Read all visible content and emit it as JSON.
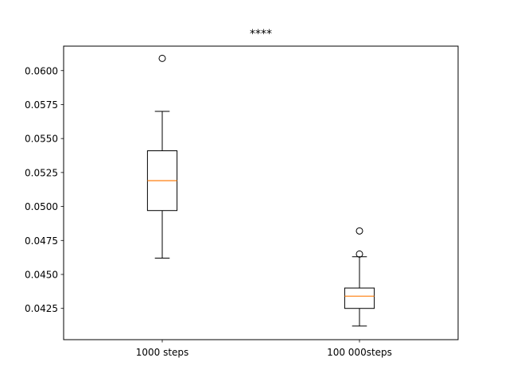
{
  "chart_data": {
    "type": "box",
    "title": "****",
    "xlabel": "",
    "ylabel": "",
    "categories": [
      "1000 steps",
      "100 000steps"
    ],
    "ylim": [
      0.0402,
      0.0618
    ],
    "yticks": [
      0.0425,
      0.045,
      0.0475,
      0.05,
      0.0525,
      0.055,
      0.0575,
      0.06
    ],
    "ytick_labels": [
      "0.0425",
      "0.0450",
      "0.0475",
      "0.0500",
      "0.0525",
      "0.0550",
      "0.0575",
      "0.0600"
    ],
    "grid": false,
    "boxes": [
      {
        "category": "1000 steps",
        "whisker_low": 0.0462,
        "q1": 0.0497,
        "median": 0.0519,
        "q3": 0.0541,
        "whisker_high": 0.057,
        "outliers": [
          0.0609
        ]
      },
      {
        "category": "100 000steps",
        "whisker_low": 0.0412,
        "q1": 0.0425,
        "median": 0.0434,
        "q3": 0.044,
        "whisker_high": 0.0463,
        "outliers": [
          0.0465,
          0.0482
        ]
      }
    ],
    "colors": {
      "box": "#000000",
      "median": "#ff7f0e",
      "outlier": "#000000"
    }
  }
}
